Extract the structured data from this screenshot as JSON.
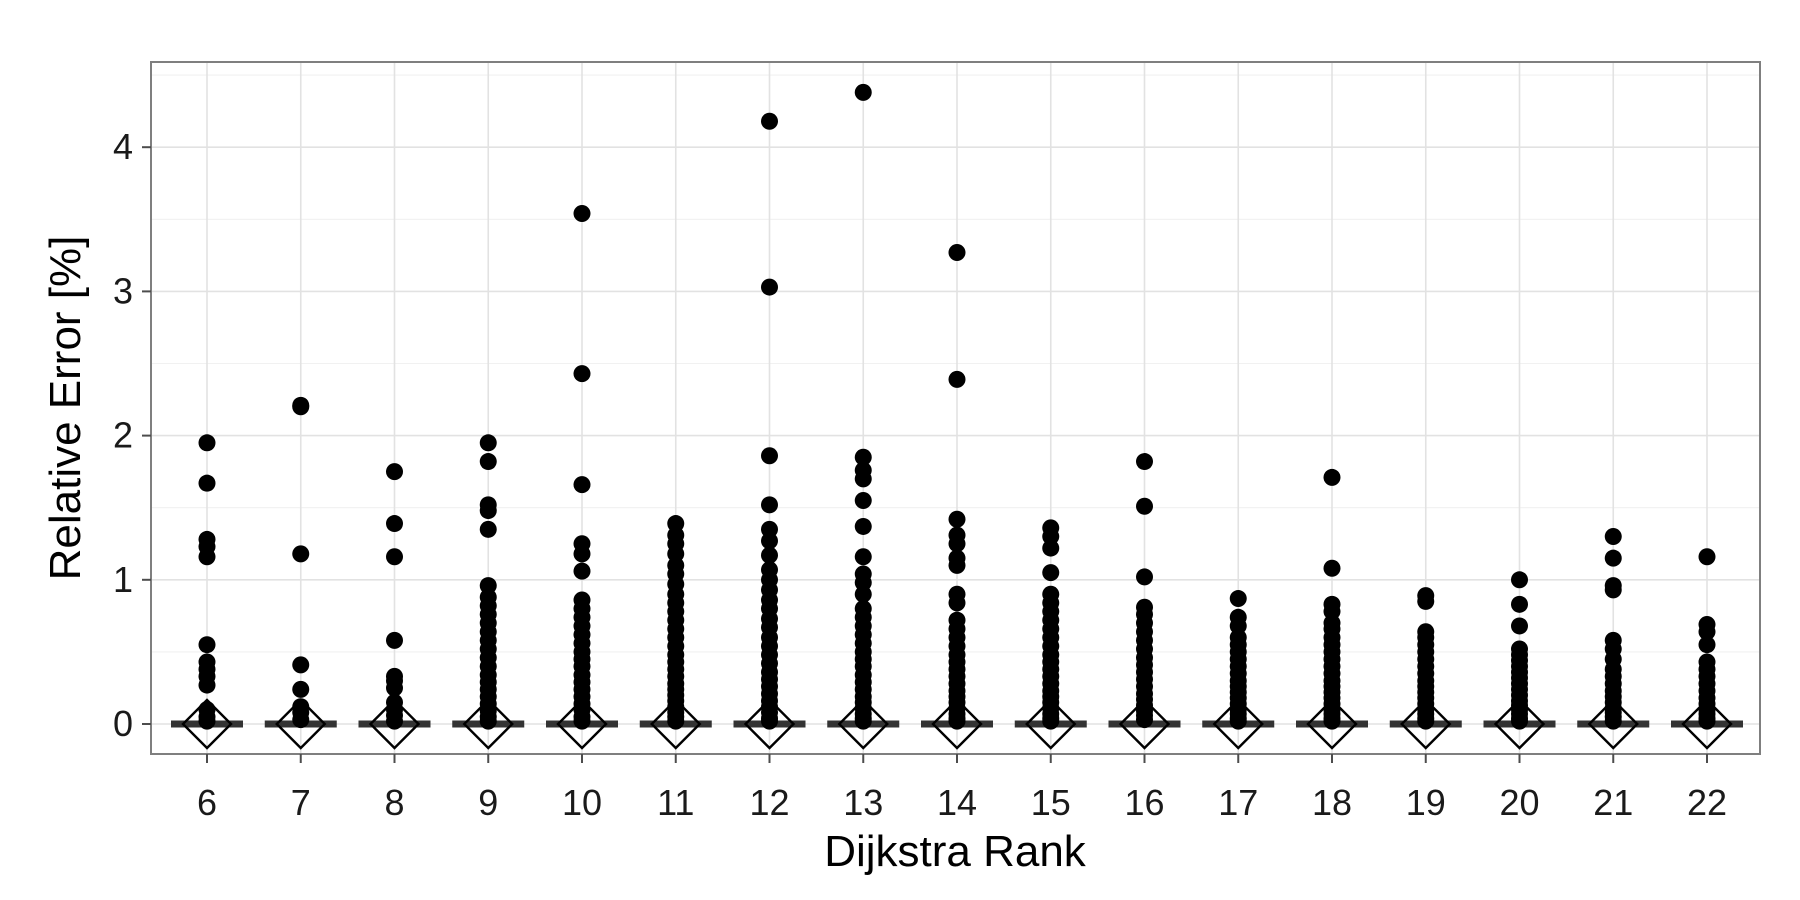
{
  "chart_data": {
    "type": "scatter",
    "title": "",
    "xlabel": "Dijkstra Rank",
    "ylabel": "Relative Error [%]",
    "categories": [
      "6",
      "7",
      "8",
      "9",
      "10",
      "11",
      "12",
      "13",
      "14",
      "15",
      "16",
      "17",
      "18",
      "19",
      "20",
      "21",
      "22"
    ],
    "yticks": [
      "0",
      "1",
      "2",
      "3",
      "4"
    ],
    "ylim": [
      -0.2,
      4.6
    ],
    "grid": true,
    "legend": "none",
    "groups": [
      {
        "x": "6",
        "median": 0,
        "points": [
          1.95,
          1.67,
          1.28,
          1.23,
          1.16,
          0.55,
          0.43,
          0.38,
          0.33,
          0.27,
          0.1,
          0.05,
          0.02
        ]
      },
      {
        "x": "7",
        "median": 0,
        "points": [
          2.21,
          2.2,
          1.18,
          0.41,
          0.24,
          0.12,
          0.08,
          0.03
        ]
      },
      {
        "x": "8",
        "median": 0,
        "points": [
          1.75,
          1.39,
          1.16,
          0.58,
          0.33,
          0.3,
          0.25,
          0.15,
          0.1,
          0.06,
          0.02
        ]
      },
      {
        "x": "9",
        "median": 0,
        "points": [
          1.95,
          1.82,
          1.52,
          1.48,
          1.35,
          0.96,
          0.88,
          0.82,
          0.76,
          0.7,
          0.64,
          0.58,
          0.52,
          0.46,
          0.4,
          0.34,
          0.29,
          0.24,
          0.19,
          0.14,
          0.09,
          0.05,
          0.02
        ]
      },
      {
        "x": "10",
        "median": 0,
        "points": [
          3.54,
          2.43,
          1.66,
          1.25,
          1.18,
          1.06,
          0.86,
          0.8,
          0.74,
          0.68,
          0.62,
          0.56,
          0.5,
          0.45,
          0.4,
          0.34,
          0.29,
          0.24,
          0.19,
          0.14,
          0.1,
          0.05,
          0.02
        ]
      },
      {
        "x": "11",
        "median": 0,
        "points": [
          1.39,
          1.31,
          1.25,
          1.18,
          1.1,
          1.04,
          0.97,
          0.9,
          0.84,
          0.78,
          0.72,
          0.66,
          0.6,
          0.54,
          0.48,
          0.43,
          0.38,
          0.33,
          0.28,
          0.24,
          0.2,
          0.16,
          0.12,
          0.08,
          0.05,
          0.02
        ]
      },
      {
        "x": "12",
        "median": 0,
        "points": [
          4.18,
          3.03,
          1.86,
          1.52,
          1.35,
          1.27,
          1.17,
          1.07,
          1.0,
          0.93,
          0.86,
          0.8,
          0.73,
          0.67,
          0.6,
          0.54,
          0.48,
          0.42,
          0.36,
          0.31,
          0.26,
          0.21,
          0.16,
          0.12,
          0.08,
          0.04,
          0.02
        ]
      },
      {
        "x": "13",
        "median": 0,
        "points": [
          4.38,
          1.85,
          1.76,
          1.7,
          1.55,
          1.37,
          1.16,
          1.04,
          0.98,
          0.9,
          0.8,
          0.74,
          0.68,
          0.62,
          0.56,
          0.5,
          0.45,
          0.4,
          0.34,
          0.29,
          0.24,
          0.19,
          0.15,
          0.11,
          0.07,
          0.04,
          0.02
        ]
      },
      {
        "x": "14",
        "median": 0,
        "points": [
          3.27,
          2.39,
          1.42,
          1.31,
          1.25,
          1.15,
          1.1,
          0.9,
          0.84,
          0.72,
          0.66,
          0.6,
          0.54,
          0.48,
          0.43,
          0.38,
          0.33,
          0.28,
          0.23,
          0.19,
          0.15,
          0.11,
          0.07,
          0.04,
          0.02
        ]
      },
      {
        "x": "15",
        "median": 0,
        "points": [
          1.36,
          1.3,
          1.22,
          1.05,
          0.9,
          0.84,
          0.78,
          0.72,
          0.66,
          0.6,
          0.54,
          0.48,
          0.43,
          0.38,
          0.33,
          0.28,
          0.23,
          0.19,
          0.15,
          0.11,
          0.07,
          0.04,
          0.02
        ]
      },
      {
        "x": "16",
        "median": 0,
        "points": [
          1.82,
          1.51,
          1.02,
          0.81,
          0.76,
          0.7,
          0.64,
          0.58,
          0.52,
          0.46,
          0.41,
          0.36,
          0.31,
          0.26,
          0.21,
          0.17,
          0.13,
          0.09,
          0.06,
          0.03
        ]
      },
      {
        "x": "17",
        "median": 0,
        "points": [
          0.87,
          0.74,
          0.68,
          0.6,
          0.55,
          0.5,
          0.45,
          0.4,
          0.35,
          0.3,
          0.26,
          0.22,
          0.18,
          0.14,
          0.1,
          0.07,
          0.04,
          0.02
        ]
      },
      {
        "x": "18",
        "median": 0,
        "points": [
          1.71,
          1.08,
          0.83,
          0.78,
          0.7,
          0.66,
          0.6,
          0.55,
          0.5,
          0.45,
          0.4,
          0.35,
          0.3,
          0.26,
          0.22,
          0.18,
          0.14,
          0.1,
          0.07,
          0.04,
          0.02
        ]
      },
      {
        "x": "19",
        "median": 0,
        "points": [
          0.89,
          0.85,
          0.64,
          0.6,
          0.55,
          0.5,
          0.45,
          0.4,
          0.35,
          0.3,
          0.26,
          0.22,
          0.18,
          0.14,
          0.1,
          0.07,
          0.04,
          0.02
        ]
      },
      {
        "x": "20",
        "median": 0,
        "points": [
          1.0,
          0.83,
          0.68,
          0.52,
          0.48,
          0.44,
          0.4,
          0.36,
          0.32,
          0.28,
          0.24,
          0.2,
          0.16,
          0.13,
          0.1,
          0.07,
          0.04,
          0.02
        ]
      },
      {
        "x": "21",
        "median": 0,
        "points": [
          1.3,
          1.15,
          0.96,
          0.93,
          0.58,
          0.52,
          0.45,
          0.38,
          0.33,
          0.28,
          0.23,
          0.19,
          0.15,
          0.11,
          0.08,
          0.05,
          0.02
        ]
      },
      {
        "x": "22",
        "median": 0,
        "points": [
          1.16,
          0.69,
          0.64,
          0.55,
          0.43,
          0.38,
          0.33,
          0.28,
          0.23,
          0.18,
          0.14,
          0.1,
          0.07,
          0.04,
          0.02
        ]
      }
    ]
  }
}
